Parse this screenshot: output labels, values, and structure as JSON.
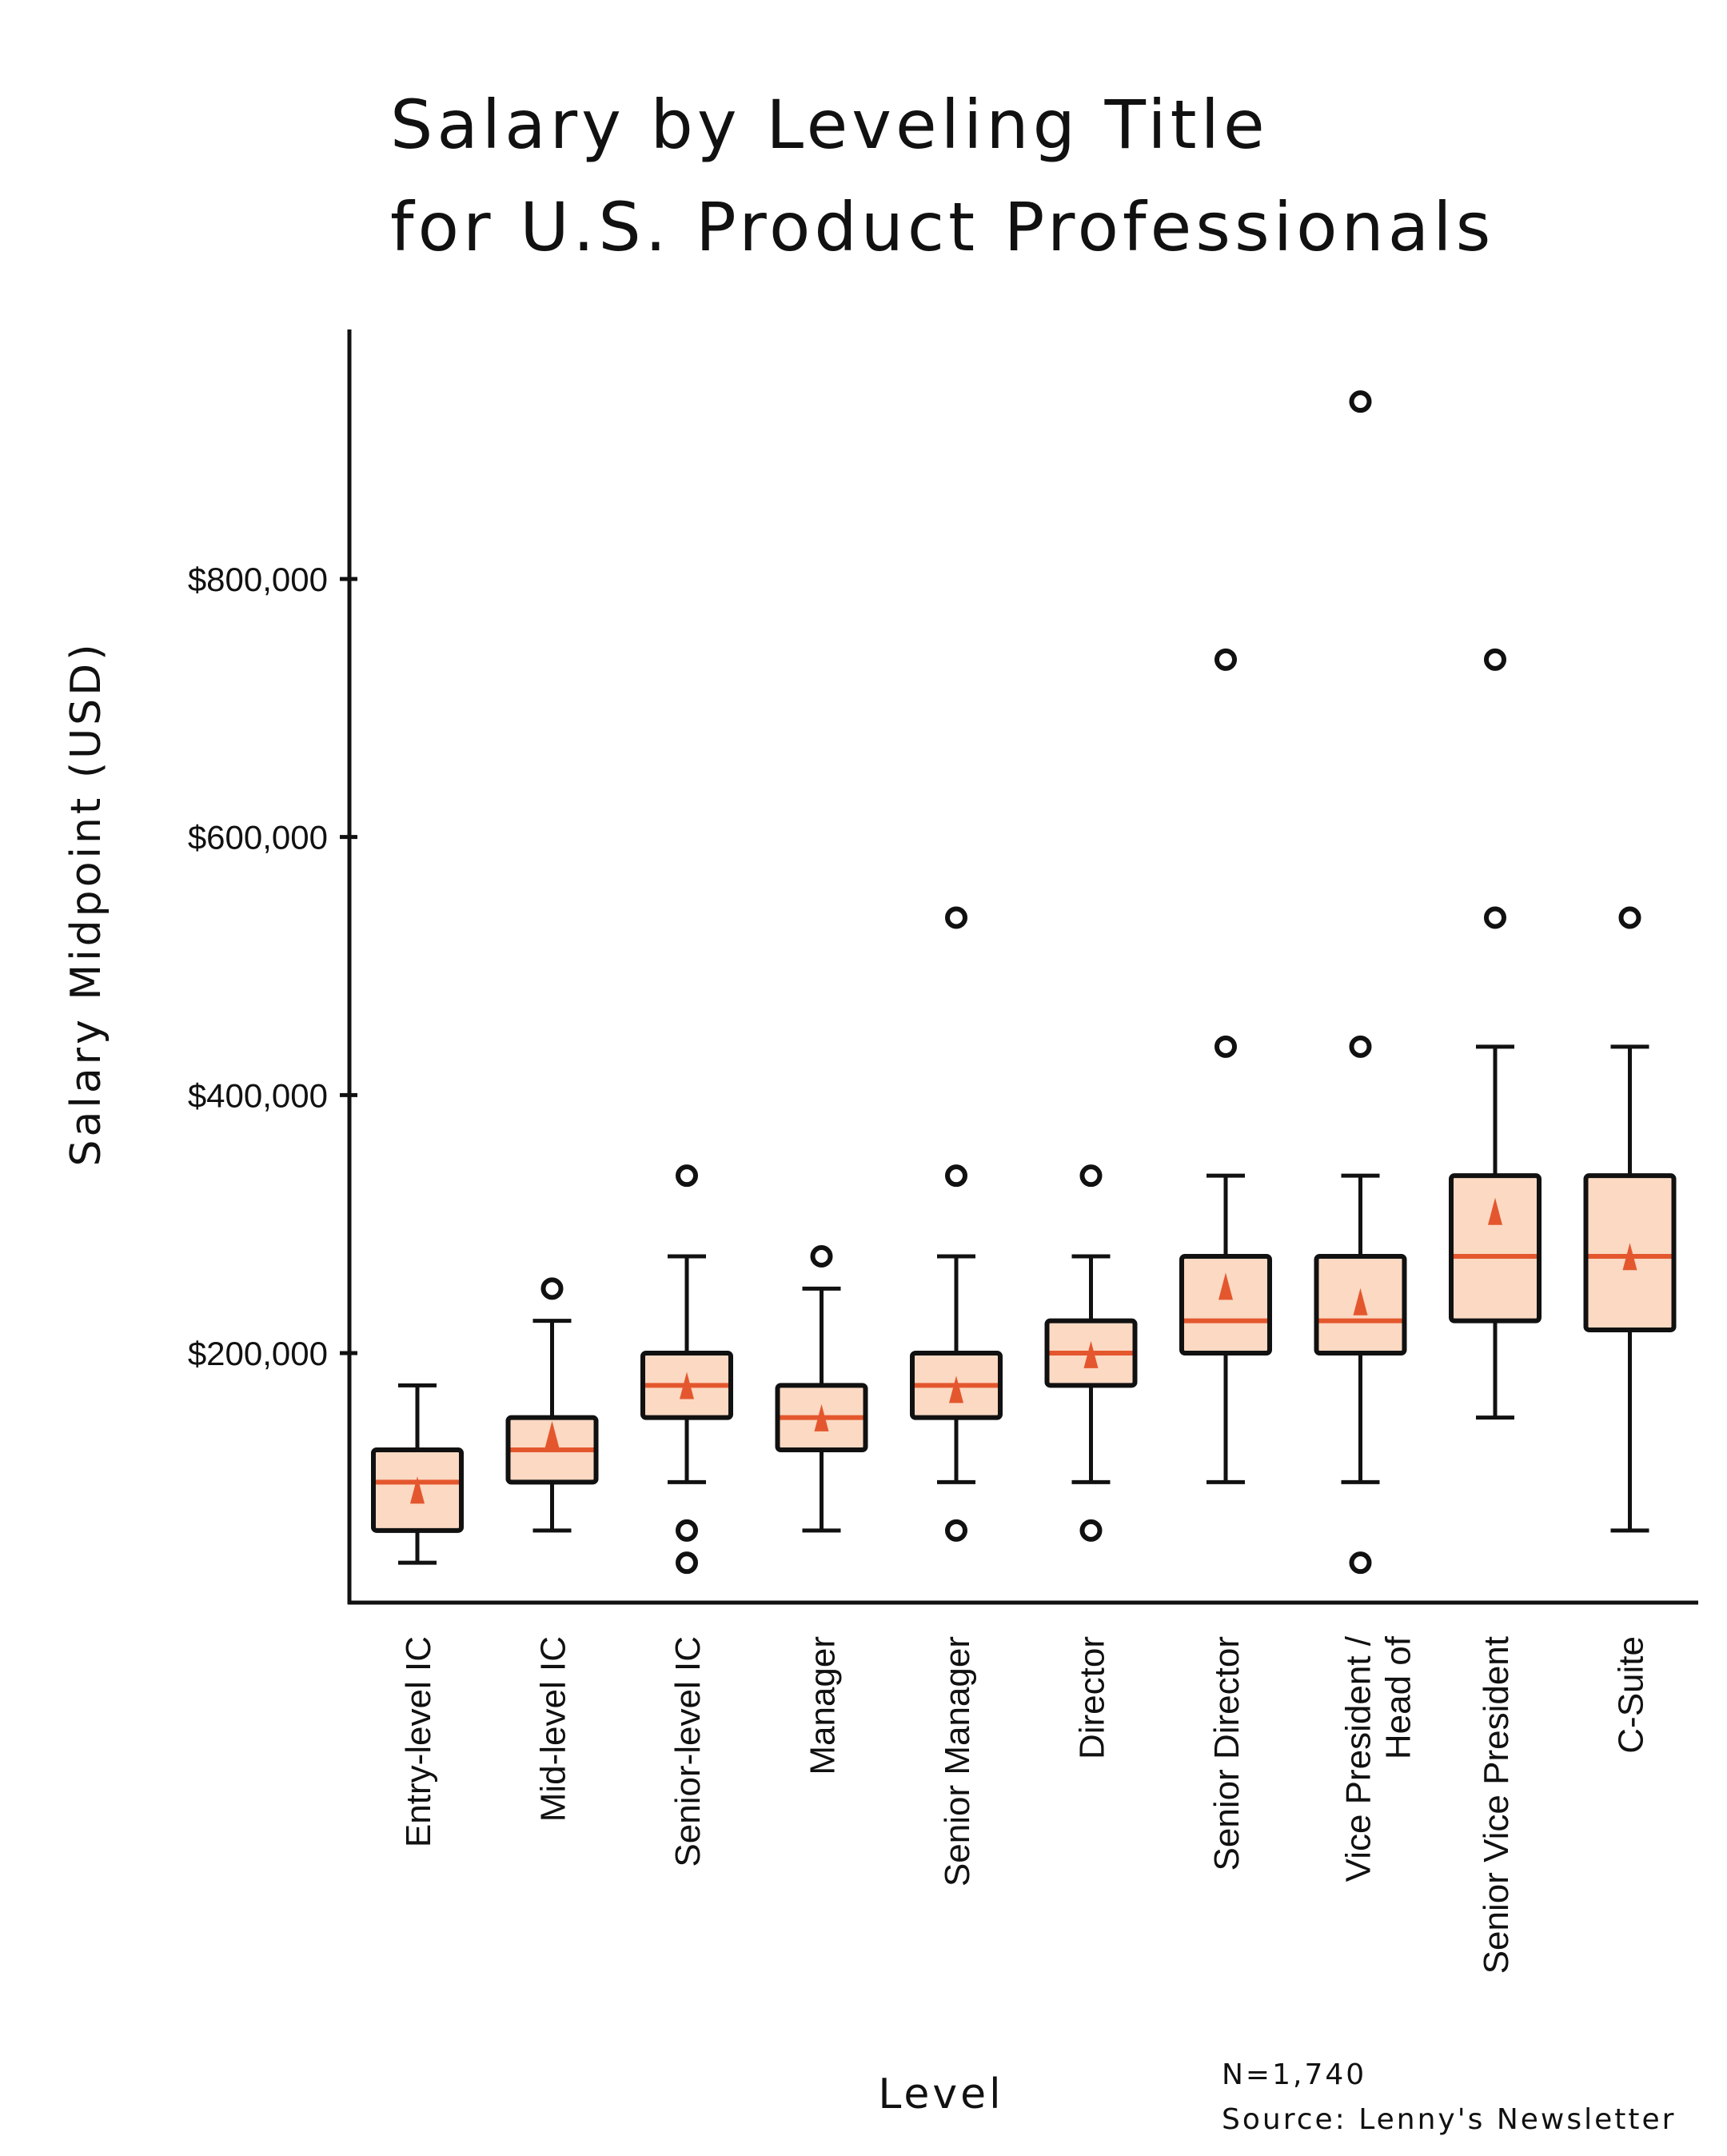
{
  "chart_data": {
    "type": "box",
    "title": "Salary by Leveling Title\nfor U.S. Product Professionals",
    "xlabel": "Level",
    "ylabel": "Salary Midpoint (USD)",
    "ylim": [
      0,
      1000000
    ],
    "yticks": [
      200000,
      400000,
      600000,
      800000
    ],
    "ytick_labels": [
      "$200,000",
      "$400,000",
      "$600,000",
      "$800,000"
    ],
    "grid": false,
    "colors": {
      "box_fill": "#fbd9c3",
      "accent": "#e4572e",
      "line": "#111111"
    },
    "categories": [
      [
        "Entry-level IC"
      ],
      [
        "Mid-level IC"
      ],
      [
        "Senior-level IC"
      ],
      [
        "Manager"
      ],
      [
        "Senior Manager"
      ],
      [
        "Director"
      ],
      [
        "Senior Director"
      ],
      [
        "Vice President /",
        "Head of"
      ],
      [
        "Senior Vice President"
      ],
      [
        "C-Suite"
      ]
    ],
    "boxes": [
      {
        "whislo": 37500,
        "q1": 62500,
        "median": 100000,
        "q3": 125000,
        "whishi": 175000,
        "mean": 92000,
        "fliers": []
      },
      {
        "whislo": 62500,
        "q1": 100000,
        "median": 125000,
        "q3": 150000,
        "whishi": 225000,
        "mean": 135000,
        "fliers": [
          250000
        ]
      },
      {
        "whislo": 100000,
        "q1": 150000,
        "median": 175000,
        "q3": 200000,
        "whishi": 275000,
        "mean": 173000,
        "fliers": [
          37500,
          62500,
          337500
        ]
      },
      {
        "whislo": 62500,
        "q1": 125000,
        "median": 150000,
        "q3": 175000,
        "whishi": 250000,
        "mean": 148000,
        "fliers": [
          275000
        ]
      },
      {
        "whislo": 100000,
        "q1": 150000,
        "median": 175000,
        "q3": 200000,
        "whishi": 275000,
        "mean": 170000,
        "fliers": [
          62500,
          337500,
          537500
        ]
      },
      {
        "whislo": 100000,
        "q1": 175000,
        "median": 200000,
        "q3": 225000,
        "whishi": 275000,
        "mean": 197000,
        "fliers": [
          62500,
          337500
        ]
      },
      {
        "whislo": 100000,
        "q1": 200000,
        "median": 225000,
        "q3": 275000,
        "whishi": 337500,
        "mean": 250000,
        "fliers": [
          437500,
          737500
        ]
      },
      {
        "whislo": 100000,
        "q1": 200000,
        "median": 225000,
        "q3": 275000,
        "whishi": 337500,
        "mean": 238000,
        "fliers": [
          37500,
          437500,
          937500
        ]
      },
      {
        "whislo": 150000,
        "q1": 225000,
        "median": 275000,
        "q3": 337500,
        "whishi": 437500,
        "mean": 308000,
        "fliers": [
          537500,
          737500
        ]
      },
      {
        "whislo": 62500,
        "q1": 218000,
        "median": 275000,
        "q3": 337500,
        "whishi": 437500,
        "mean": 273000,
        "fliers": [
          537500
        ]
      }
    ],
    "annotations": [
      "N=1,740",
      "Source: Lenny's Newsletter"
    ]
  }
}
